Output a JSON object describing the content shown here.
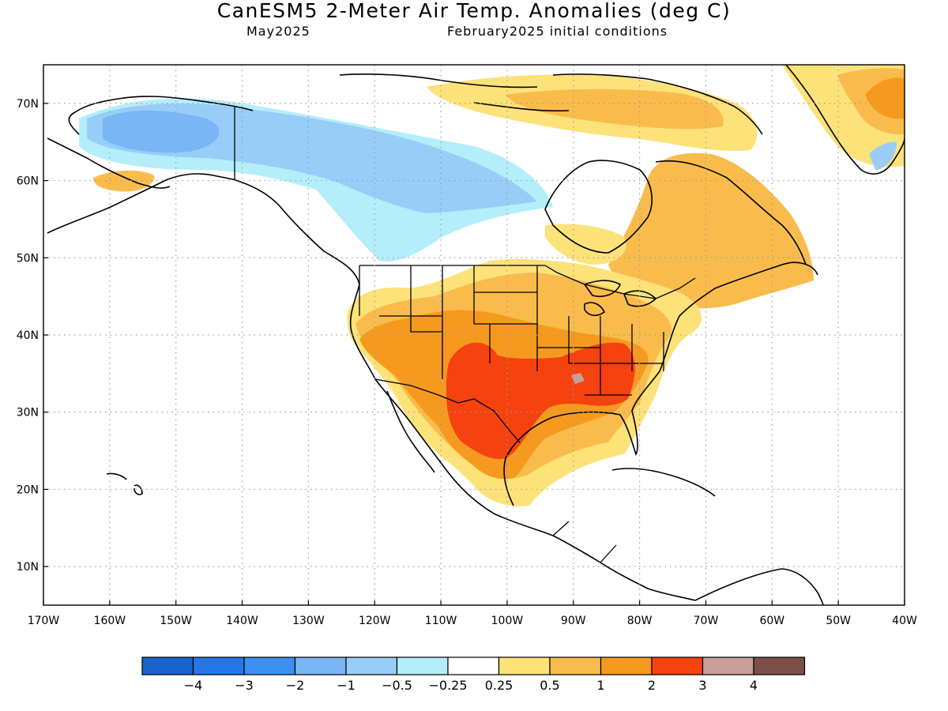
{
  "header": {
    "title": "CanESM5 2-Meter Air Temp. Anomalies (deg C)",
    "valid_month": "May2025",
    "initial_conditions": "February2025 initial conditions"
  },
  "map": {
    "lon_range": [
      -170,
      -40
    ],
    "lat_range": [
      5,
      75
    ],
    "gridlines": "dotted",
    "lat_ticks": [
      {
        "value": 70,
        "label": "70N"
      },
      {
        "value": 60,
        "label": "60N"
      },
      {
        "value": 50,
        "label": "50N"
      },
      {
        "value": 40,
        "label": "40N"
      },
      {
        "value": 30,
        "label": "30N"
      },
      {
        "value": 20,
        "label": "20N"
      },
      {
        "value": 10,
        "label": "10N"
      }
    ],
    "lon_ticks": [
      {
        "value": -170,
        "label": "170W"
      },
      {
        "value": -160,
        "label": "160W"
      },
      {
        "value": -150,
        "label": "150W"
      },
      {
        "value": -140,
        "label": "140W"
      },
      {
        "value": -130,
        "label": "130W"
      },
      {
        "value": -120,
        "label": "120W"
      },
      {
        "value": -110,
        "label": "110W"
      },
      {
        "value": -100,
        "label": "100W"
      },
      {
        "value": -90,
        "label": "90W"
      },
      {
        "value": -80,
        "label": "80W"
      },
      {
        "value": -70,
        "label": "70W"
      },
      {
        "value": -60,
        "label": "60W"
      },
      {
        "value": -50,
        "label": "50W"
      },
      {
        "value": -40,
        "label": "40W"
      }
    ]
  },
  "legend": {
    "colors": [
      "#1964cc",
      "#2776e6",
      "#3d8ff0",
      "#78b6f5",
      "#98cdf7",
      "#b4eefa",
      "#ffffff",
      "#fde27a",
      "#f9bc4c",
      "#f59a1e",
      "#f5420f",
      "#c8a09a",
      "#7a5048"
    ],
    "labels": [
      "−4",
      "−3",
      "−2",
      "−1",
      "−0.5",
      "−0.25",
      "0.25",
      "0.5",
      "1",
      "2",
      "3",
      "4"
    ]
  }
}
